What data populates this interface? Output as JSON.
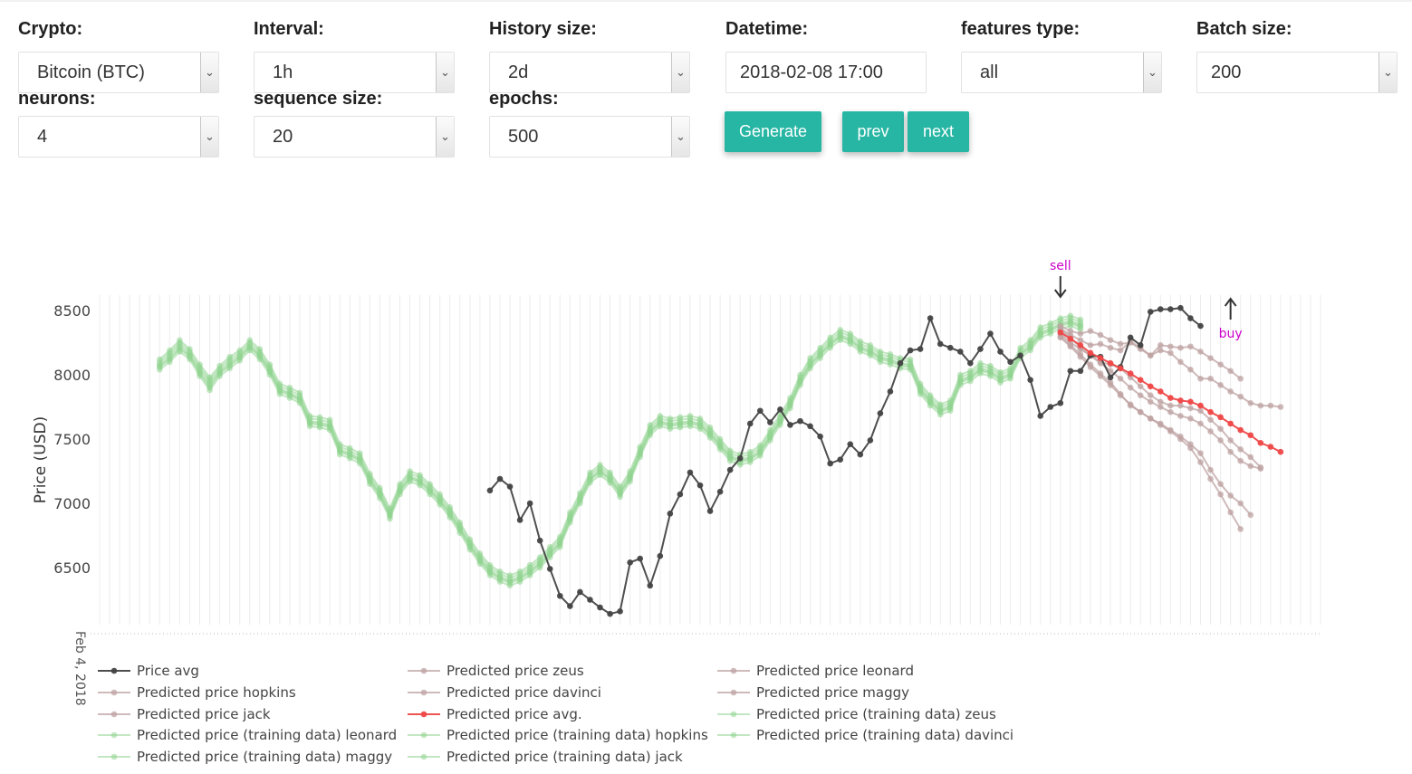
{
  "controls": {
    "crypto": {
      "label": "Crypto:",
      "value": "Bitcoin (BTC)"
    },
    "interval": {
      "label": "Interval:",
      "value": "1h"
    },
    "history": {
      "label": "History size:",
      "value": "2d"
    },
    "datetime": {
      "label": "Datetime:",
      "value": "2018-02-08 17:00"
    },
    "features": {
      "label": "features type:",
      "value": "all"
    },
    "batch": {
      "label": "Batch size:",
      "value": "200"
    },
    "neurons": {
      "label": "neurons:",
      "value": "4"
    },
    "sequence": {
      "label": "sequence size:",
      "value": "20"
    },
    "epochs": {
      "label": "epochs:",
      "value": "500"
    }
  },
  "buttons": {
    "generate": "Generate",
    "prev": "prev",
    "next": "next"
  },
  "colors": {
    "accent": "#26b6a3",
    "avg": "#444444",
    "predicted": "#bfa3a3",
    "predicted_avg": "#ef4848",
    "training": "#8fd48f",
    "marker": "#cc00cc"
  },
  "chart_data": {
    "type": "line",
    "ylabel": "Price (USD)",
    "yticks": [
      6500,
      7000,
      7500,
      8000,
      8500
    ],
    "ylim": [
      6080,
      8620
    ],
    "x_first_label": "Feb 4, 2018",
    "x_units": "hour index (1h interval)",
    "grid": true,
    "legend_position": "bottom",
    "annotations": [
      {
        "text": "sell",
        "x": 96,
        "arrow": "down"
      },
      {
        "text": "buy",
        "x": 113,
        "arrow": "up"
      }
    ],
    "series": [
      {
        "name": "Price avg",
        "x_start": 39,
        "values": [
          7100,
          7190,
          7130,
          6870,
          7000,
          6710,
          6490,
          6280,
          6200,
          6310,
          6250,
          6190,
          6140,
          6160,
          6540,
          6570,
          6360,
          6590,
          6920,
          7070,
          7240,
          7140,
          6940,
          7090,
          7260,
          7350,
          7620,
          7720,
          7630,
          7730,
          7610,
          7640,
          7600,
          7520,
          7310,
          7340,
          7460,
          7380,
          7490,
          7700,
          7870,
          8090,
          8190,
          8200,
          8440,
          8240,
          8210,
          8180,
          8090,
          8200,
          8320,
          8180,
          8100,
          8150,
          7960,
          7680,
          7750,
          7780,
          8030,
          8030,
          8150,
          8140,
          7980,
          8060,
          8290,
          8230,
          8490,
          8510,
          8510,
          8520,
          8440,
          8380
        ]
      },
      {
        "name": "Predicted price zeus",
        "x_start": 96,
        "values": [
          8380,
          8340,
          8320,
          8340,
          8310,
          8270,
          8240,
          8250,
          8200,
          8150,
          8190,
          8170,
          8100,
          8040,
          7970,
          7970,
          7920,
          7870,
          7830,
          7780,
          7760,
          7760,
          7750
        ]
      },
      {
        "name": "Predicted price leonard",
        "x_start": 96,
        "values": [
          8360,
          8310,
          8270,
          8230,
          8240,
          8210,
          8190,
          8260,
          8210,
          8150,
          8230,
          8220,
          8210,
          8220,
          8180,
          8130,
          8080,
          8030,
          7970
        ]
      },
      {
        "name": "Predicted price hopkins",
        "x_start": 96,
        "values": [
          8350,
          8290,
          8210,
          8150,
          8090,
          8030,
          7970,
          7900,
          7840,
          7790,
          7750,
          7710,
          7680,
          7660,
          7620,
          7560,
          7490,
          7400,
          7330,
          7290,
          7270
        ]
      },
      {
        "name": "Predicted price davinci",
        "x_start": 96,
        "values": [
          8320,
          8250,
          8200,
          8150,
          8100,
          8080,
          8050,
          7980,
          7910,
          7840,
          7790,
          7760,
          7760,
          7740,
          7720,
          7650,
          7580,
          7490,
          7420,
          7360,
          7280
        ]
      },
      {
        "name": "Predicted price maggy",
        "x_start": 96,
        "values": [
          8290,
          8220,
          8140,
          8060,
          7990,
          7920,
          7840,
          7770,
          7710,
          7660,
          7610,
          7560,
          7500,
          7430,
          7320,
          7190,
          7070,
          6930,
          6800
        ]
      },
      {
        "name": "Predicted price jack",
        "x_start": 96,
        "values": [
          8300,
          8230,
          8160,
          8080,
          8010,
          7940,
          7850,
          7760,
          7710,
          7660,
          7620,
          7570,
          7520,
          7460,
          7390,
          7260,
          7150,
          7060,
          7000,
          6910
        ]
      },
      {
        "name": "Predicted price avg.",
        "x_start": 96,
        "values": [
          8330,
          8280,
          8230,
          8170,
          8130,
          8090,
          8050,
          8010,
          7960,
          7910,
          7870,
          7820,
          7800,
          7790,
          7760,
          7710,
          7670,
          7620,
          7570,
          7530,
          7470,
          7440,
          7400
        ]
      },
      {
        "name": "Predicted price (training data) zeus",
        "x_start": 6,
        "values": [
          8080,
          8150,
          8230,
          8160,
          8040,
          7940,
          8030,
          8100,
          8150,
          8230,
          8160,
          8040,
          7890,
          7860,
          7820,
          7640,
          7630,
          7610,
          7420,
          7390,
          7350,
          7190,
          7080,
          6920,
          7110,
          7210,
          7180,
          7110,
          7030,
          6930,
          6810,
          6680,
          6570,
          6480,
          6430,
          6400,
          6430,
          6480,
          6540,
          6620,
          6700,
          6890,
          7040,
          7200,
          7260,
          7200,
          7090,
          7210,
          7400,
          7570,
          7640,
          7620,
          7630,
          7640,
          7620,
          7550,
          7460,
          7370,
          7340,
          7360,
          7410,
          7530,
          7650,
          7780,
          7960,
          8090,
          8170,
          8250,
          8310,
          8280,
          8220,
          8190,
          8140,
          8120,
          8090,
          8080,
          7890,
          7800,
          7730,
          7760,
          7960,
          7990,
          8050,
          8030,
          7980,
          8010,
          8170,
          8230,
          8330,
          8360,
          8400,
          8420,
          8390
        ]
      },
      {
        "name": "Predicted price (training data) leonard",
        "x_start": 6,
        "values": [
          8060,
          8120,
          8200,
          8140,
          8010,
          7900,
          8010,
          8070,
          8130,
          8210,
          8140,
          8020,
          7870,
          7840,
          7800,
          7620,
          7610,
          7590,
          7400,
          7370,
          7330,
          7170,
          7060,
          6900,
          7090,
          7190,
          7160,
          7090,
          7010,
          6910,
          6790,
          6660,
          6550,
          6460,
          6410,
          6380,
          6410,
          6460,
          6520,
          6600,
          6680,
          6870,
          7020,
          7180,
          7240,
          7180,
          7070,
          7190,
          7380,
          7550,
          7620,
          7600,
          7610,
          7620,
          7600,
          7530,
          7440,
          7350,
          7320,
          7340,
          7390,
          7510,
          7630,
          7760,
          7940,
          8070,
          8150,
          8230,
          8290,
          8260,
          8200,
          8170,
          8120,
          8100,
          8070,
          8060,
          7870,
          7780,
          7710,
          7740,
          7940,
          7970,
          8030,
          8010,
          7960,
          7990,
          8150,
          8210,
          8310,
          8340,
          8380,
          8400,
          8370
        ]
      },
      {
        "name": "Predicted price (training data) hopkins",
        "x_start": 6,
        "values": [
          8100,
          8170,
          8250,
          8180,
          8060,
          7960,
          8050,
          8120,
          8170,
          8250,
          8180,
          8060,
          7910,
          7880,
          7840,
          7660,
          7650,
          7630,
          7440,
          7410,
          7370,
          7210,
          7100,
          6940,
          7130,
          7230,
          7200,
          7130,
          7050,
          6950,
          6830,
          6700,
          6590,
          6500,
          6450,
          6420,
          6450,
          6500,
          6560,
          6640,
          6720,
          6910,
          7060,
          7220,
          7280,
          7220,
          7110,
          7230,
          7420,
          7590,
          7660,
          7640,
          7650,
          7660,
          7640,
          7570,
          7480,
          7390,
          7360,
          7380,
          7430,
          7550,
          7670,
          7800,
          7980,
          8110,
          8190,
          8270,
          8330,
          8300,
          8240,
          8210,
          8160,
          8140,
          8110,
          8100,
          7910,
          7820,
          7750,
          7780,
          7980,
          8010,
          8070,
          8050,
          8000,
          8030,
          8190,
          8250,
          8350,
          8380,
          8420,
          8440,
          8410
        ]
      },
      {
        "name": "Predicted price (training data) davinci",
        "x_start": 6,
        "values": [
          8040,
          8100,
          8180,
          8120,
          7990,
          7880,
          7990,
          8050,
          8110,
          8190,
          8120,
          8000,
          7850,
          7820,
          7780,
          7600,
          7590,
          7570,
          7380,
          7350,
          7310,
          7150,
          7040,
          6880,
          7070,
          7170,
          7140,
          7070,
          6990,
          6890,
          6770,
          6640,
          6530,
          6440,
          6390,
          6360,
          6390,
          6440,
          6500,
          6580,
          6660,
          6850,
          7000,
          7160,
          7220,
          7160,
          7050,
          7170,
          7360,
          7530,
          7600,
          7580,
          7590,
          7600,
          7580,
          7510,
          7420,
          7330,
          7300,
          7320,
          7370,
          7490,
          7610,
          7740,
          7920,
          8050,
          8130,
          8210,
          8270,
          8240,
          8180,
          8150,
          8100,
          8080,
          8050,
          8040,
          7850,
          7760,
          7690,
          7720,
          7920,
          7950,
          8010,
          7990,
          7940,
          7970,
          8130,
          8190,
          8290,
          8320,
          8360,
          8380,
          8350
        ]
      },
      {
        "name": "Predicted price (training data) maggy",
        "x_start": 6,
        "values": [
          8120,
          8190,
          8270,
          8200,
          8080,
          7980,
          8070,
          8140,
          8190,
          8270,
          8200,
          8080,
          7930,
          7900,
          7860,
          7680,
          7670,
          7650,
          7460,
          7430,
          7390,
          7230,
          7120,
          6960,
          7150,
          7250,
          7220,
          7150,
          7070,
          6970,
          6850,
          6720,
          6610,
          6520,
          6470,
          6440,
          6470,
          6520,
          6580,
          6660,
          6740,
          6930,
          7080,
          7240,
          7300,
          7240,
          7130,
          7250,
          7440,
          7610,
          7680,
          7660,
          7670,
          7680,
          7660,
          7590,
          7500,
          7410,
          7380,
          7400,
          7450,
          7570,
          7690,
          7820,
          8000,
          8130,
          8210,
          8290,
          8350,
          8320,
          8260,
          8230,
          8180,
          8160,
          8130,
          8120,
          7930,
          7840,
          7770,
          7800,
          8000,
          8030,
          8090,
          8070,
          8020,
          8050,
          8210,
          8270,
          8370,
          8400,
          8440,
          8460,
          8430
        ]
      },
      {
        "name": "Predicted price (training data) jack",
        "x_start": 6,
        "values": [
          8070,
          8130,
          8210,
          8150,
          8020,
          7920,
          8020,
          8080,
          8140,
          8220,
          8150,
          8030,
          7880,
          7850,
          7810,
          7630,
          7620,
          7600,
          7410,
          7380,
          7340,
          7180,
          7070,
          6910,
          7100,
          7200,
          7170,
          7100,
          7020,
          6920,
          6800,
          6670,
          6560,
          6470,
          6420,
          6390,
          6420,
          6470,
          6530,
          6610,
          6690,
          6880,
          7030,
          7190,
          7250,
          7190,
          7080,
          7200,
          7390,
          7560,
          7630,
          7610,
          7620,
          7630,
          7610,
          7540,
          7450,
          7360,
          7330,
          7350,
          7400,
          7520,
          7640,
          7770,
          7950,
          8080,
          8160,
          8240,
          8300,
          8270,
          8210,
          8180,
          8130,
          8110,
          8080,
          8070,
          7880,
          7790,
          7720,
          7750,
          7950,
          7980,
          8040,
          8020,
          7970,
          8000,
          8160,
          8220,
          8320,
          8350,
          8390,
          8410,
          8380
        ]
      }
    ]
  }
}
